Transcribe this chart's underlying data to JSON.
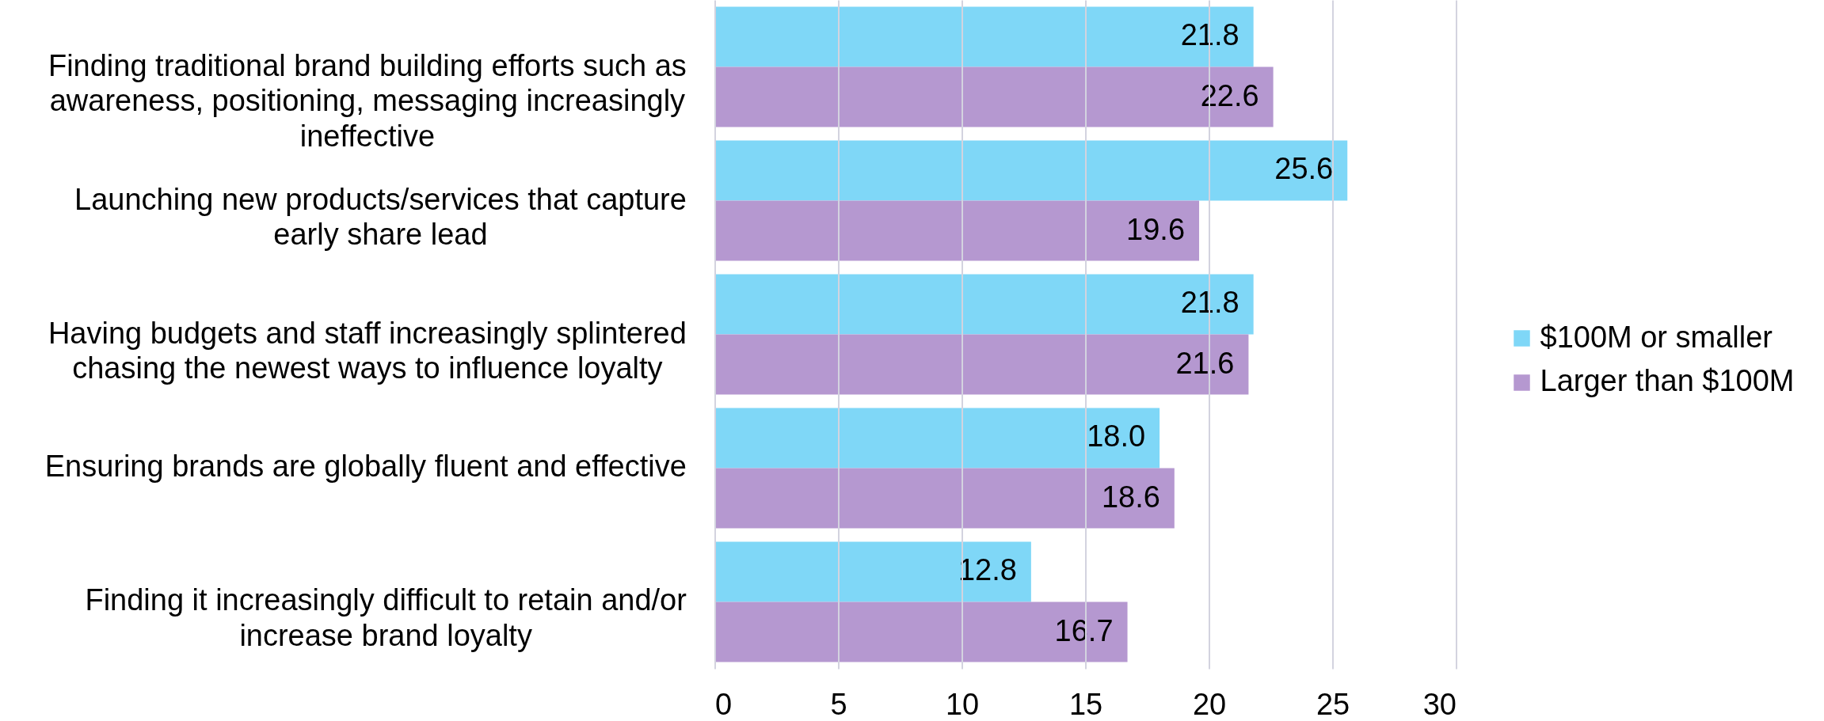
{
  "chart_data": {
    "type": "bar",
    "orientation": "horizontal",
    "categories": [
      "Finding traditional brand building efforts such as awareness, positioning, messaging increasingly ineffective",
      "Launching new products/services that capture early share lead",
      "Having budgets and staff increasingly splintered chasing the newest ways to influence loyalty",
      "Ensuring brands are globally fluent and effective",
      "Finding it increasingly difficult to retain and/or increase brand loyalty"
    ],
    "series": [
      {
        "name": "$100M or smaller",
        "color": "#7fd7f7",
        "values": [
          21.8,
          25.6,
          21.8,
          18.0,
          12.8
        ],
        "value_labels": [
          "21.8",
          "25.6",
          "21.8",
          "18.0",
          "12.8"
        ]
      },
      {
        "name": "Larger than $100M",
        "color": "#b598d0",
        "values": [
          22.6,
          19.6,
          21.6,
          18.6,
          16.7
        ],
        "value_labels": [
          "22.6",
          "19.6",
          "21.6",
          "18.6",
          "16.7"
        ]
      }
    ],
    "xlim": [
      0,
      30
    ],
    "xticks": [
      0,
      5,
      10,
      15,
      20,
      25,
      30
    ],
    "grid": "x",
    "legend": "right"
  }
}
